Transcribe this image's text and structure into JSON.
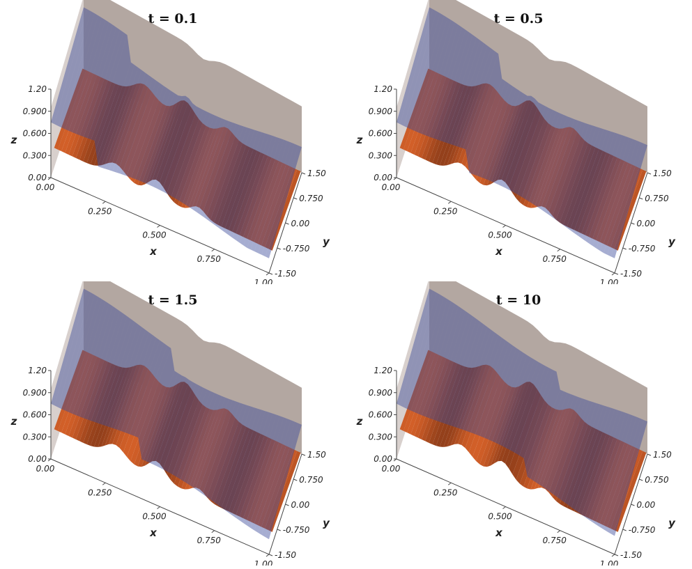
{
  "figure": {
    "panels": [
      {
        "title": "t = 0.1",
        "time": 0.1
      },
      {
        "title": "t = 0.5",
        "time": 0.5
      },
      {
        "title": "t = 1.5",
        "time": 1.5
      },
      {
        "title": "t = 10",
        "time": 10
      }
    ],
    "axes": {
      "x_label": "x",
      "y_label": "y",
      "z_label": "z",
      "x_ticks": [
        "0.00",
        "0.250",
        "0.500",
        "0.750",
        "1.00"
      ],
      "y_ticks": [
        "-1.50",
        "-0.750",
        "0.00",
        "0.750",
        "1.50"
      ],
      "z_ticks": [
        "0.00",
        "0.300",
        "0.600",
        "0.900",
        "1.20"
      ]
    },
    "colors": {
      "water_surface": "#3a4a9a",
      "bottom_topography": "#c8662a",
      "back_wall": "#9a8a82"
    }
  }
}
